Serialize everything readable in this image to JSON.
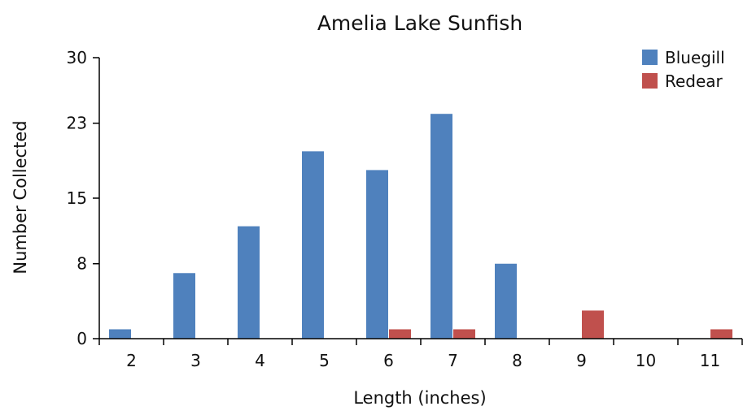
{
  "chart_data": {
    "type": "bar",
    "title": "Amelia Lake Sunfish",
    "xlabel": "Length (inches)",
    "ylabel": "Number Collected",
    "categories": [
      "2",
      "3",
      "4",
      "5",
      "6",
      "7",
      "8",
      "9",
      "10",
      "11"
    ],
    "series": [
      {
        "name": "Bluegill",
        "color": "#4f81bd",
        "values": [
          1,
          7,
          12,
          20,
          18,
          24,
          8,
          0,
          0,
          0
        ]
      },
      {
        "name": "Redear",
        "color": "#c0504d",
        "values": [
          0,
          0,
          0,
          0,
          1,
          1,
          0,
          3,
          0,
          1
        ]
      }
    ],
    "yticks": [
      "0",
      "8",
      "15",
      "23",
      "30"
    ],
    "ylim": [
      0,
      30
    ],
    "grid": false,
    "legend_position": "top-right"
  }
}
